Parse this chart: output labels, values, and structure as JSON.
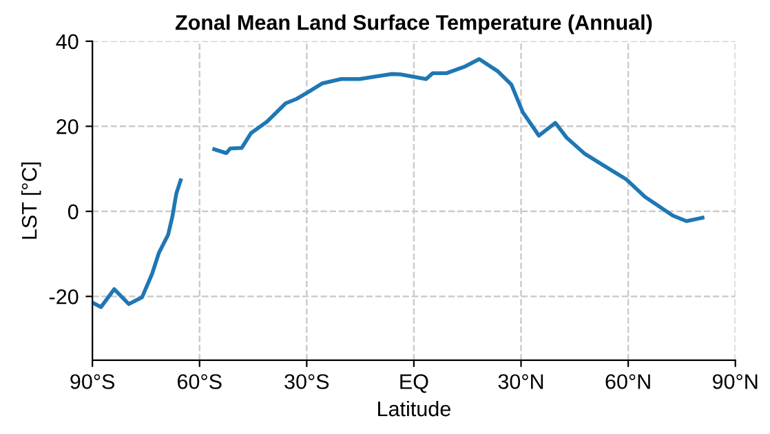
{
  "chart_data": {
    "type": "line",
    "title": "Zonal Mean Land Surface Temperature (Annual)",
    "xlabel": "Latitude",
    "ylabel": "LST [°C]",
    "xlim": [
      -90,
      90
    ],
    "xticks": [
      {
        "value": -90,
        "label": "90°S"
      },
      {
        "value": -60,
        "label": "60°S"
      },
      {
        "value": -30,
        "label": "30°S"
      },
      {
        "value": 0,
        "label": "EQ"
      },
      {
        "value": 30,
        "label": "30°N"
      },
      {
        "value": 60,
        "label": "60°N"
      },
      {
        "value": 90,
        "label": "90°N"
      }
    ],
    "ylim": [
      -35,
      40
    ],
    "yticks": [
      -20,
      0,
      20,
      40
    ],
    "grid": true,
    "marker": "none",
    "line_style": "solid",
    "series": [
      {
        "color": "#1f77b4",
        "x": [
          -89.9,
          -87.6,
          -83.9,
          -79.8,
          -76.1,
          -73.3,
          -71.4,
          -68.8,
          -67.6,
          -66.5,
          -65.3,
          -60.6,
          -55.9,
          -52.5,
          -51.4,
          -48.2,
          -45.6,
          -41.1,
          -35.9,
          -32.7,
          -29.5,
          -25.6,
          -20.4,
          -15.2,
          -6.3,
          -3.7,
          3.4,
          5.3,
          9.2,
          14.4,
          18.3,
          23.4,
          27.3,
          30.5,
          35.0,
          39.6,
          42.8,
          47.9,
          53.1,
          59.5,
          64.7,
          72.5,
          76.3,
          80.8
        ],
        "values": [
          -21.5,
          -22.5,
          -18.3,
          -21.8,
          -20.2,
          -14.7,
          -9.8,
          -5.5,
          -1.2,
          4.2,
          7.3,
          null,
          14.6,
          13.7,
          14.8,
          14.9,
          18.4,
          21.1,
          25.4,
          26.5,
          28.1,
          30.1,
          31.1,
          31.1,
          32.3,
          32.2,
          31.1,
          32.5,
          32.5,
          34.1,
          35.8,
          33.0,
          29.8,
          23.3,
          17.8,
          20.8,
          17.3,
          13.5,
          10.8,
          7.5,
          3.4,
          -1.0,
          -2.3,
          -1.5
        ]
      }
    ]
  }
}
